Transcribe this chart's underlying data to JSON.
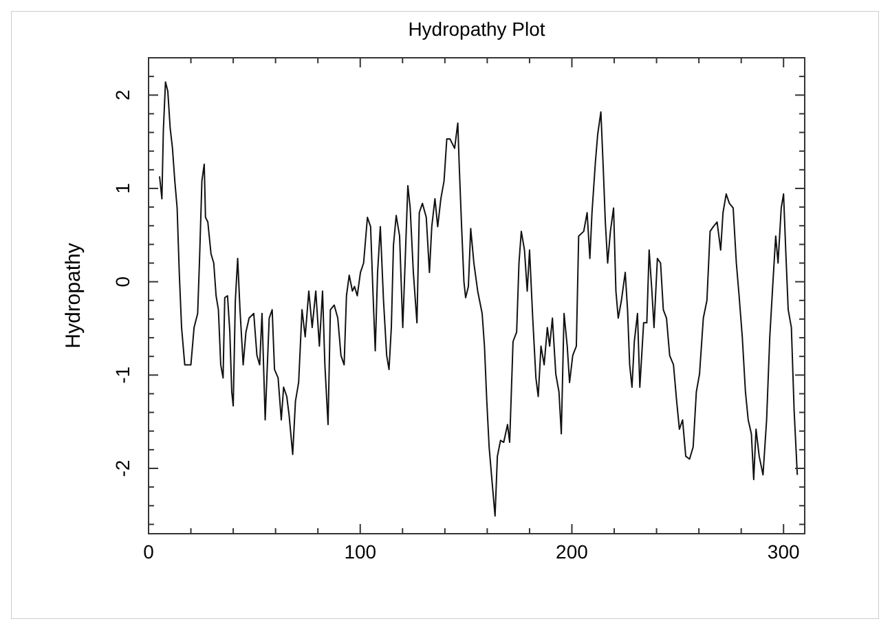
{
  "chart_data": {
    "type": "line",
    "title": "Hydropathy Plot",
    "ylabel": "Hydropathy",
    "xlim": [
      0,
      310
    ],
    "ylim": [
      -2.7,
      2.4
    ],
    "xticks": [
      0,
      {
        "value": 20,
        "label": null
      },
      {
        "value": 40,
        "label": null
      },
      {
        "value": 60,
        "label": null
      },
      {
        "value": 80,
        "label": null
      },
      100,
      {
        "value": 120,
        "label": null
      },
      {
        "value": 140,
        "label": null
      },
      {
        "value": 160,
        "label": null
      },
      {
        "value": 180,
        "label": null
      },
      200,
      {
        "value": 220,
        "label": null
      },
      {
        "value": 240,
        "label": null
      },
      {
        "value": 260,
        "label": null
      },
      {
        "value": 280,
        "label": null
      },
      300
    ],
    "yticks": [
      {
        "value": -2.6,
        "label": null
      },
      {
        "value": -2.4,
        "label": null
      },
      {
        "value": -2.2,
        "label": null
      },
      -2,
      {
        "value": -1.8,
        "label": null
      },
      {
        "value": -1.6,
        "label": null
      },
      {
        "value": -1.4,
        "label": null
      },
      {
        "value": -1.2,
        "label": null
      },
      -1,
      {
        "value": -0.8,
        "label": null
      },
      {
        "value": -0.6,
        "label": null
      },
      {
        "value": -0.4,
        "label": null
      },
      {
        "value": -0.2,
        "label": null
      },
      0,
      {
        "value": 0.2,
        "label": null
      },
      {
        "value": 0.4,
        "label": null
      },
      {
        "value": 0.6,
        "label": null
      },
      {
        "value": 0.8,
        "label": null
      },
      1,
      {
        "value": 1.2,
        "label": null
      },
      {
        "value": 1.4,
        "label": null
      },
      {
        "value": 1.6,
        "label": null
      },
      {
        "value": 1.8,
        "label": null
      },
      2,
      {
        "value": 2.2,
        "label": null
      }
    ],
    "grid": false,
    "marker": "none",
    "line_style": "solid",
    "series": [
      {
        "color": "#111111",
        "x": [
          5.2,
          6.3,
          7,
          8,
          9.1,
          10.2,
          11.3,
          12.4,
          13.5,
          14.5,
          15.6,
          17.1,
          20,
          21.5,
          23.2,
          24.1,
          25.2,
          26.3,
          26.9,
          28,
          29.5,
          30.8,
          31.9,
          33,
          34.1,
          35.2,
          36,
          37.3,
          38.4,
          39.3,
          40,
          41,
          42.1,
          43.2,
          44.7,
          46,
          47.5,
          49.7,
          51.2,
          52.5,
          53.6,
          55.1,
          57,
          58.4,
          59.5,
          61.2,
          62.7,
          63.8,
          65.3,
          66.4,
          68.1,
          69.4,
          70.9,
          72.5,
          74,
          75.7,
          77.3,
          79,
          80.7,
          82.2,
          83.3,
          84.8,
          85.9,
          87.7,
          89.4,
          90.9,
          92.4,
          93.5,
          94.8,
          96.3,
          97.3,
          98.6,
          100.1,
          101.6,
          103.4,
          104.9,
          106,
          107.1,
          108.2,
          109.5,
          111,
          112.5,
          113.6,
          114.7,
          115.7,
          117,
          118.6,
          120.1,
          121.2,
          122.5,
          123.6,
          125.1,
          126.8,
          127.9,
          129.4,
          131.2,
          132.7,
          133.8,
          135.3,
          136.6,
          138.1,
          139.6,
          140.9,
          142.4,
          144.6,
          146.1,
          146.8,
          147.9,
          149,
          149.8,
          151.1,
          152.2,
          153.7,
          155.5,
          157.6,
          158.7,
          159.8,
          160.9,
          162.4,
          163.7,
          164.8,
          166.3,
          167.8,
          169.6,
          170.6,
          172.2,
          173.9,
          175,
          176.1,
          177.6,
          178.9,
          180,
          181.5,
          183,
          184.1,
          185.4,
          186.9,
          188.4,
          189.5,
          190.8,
          192.4,
          193.9,
          195,
          196.3,
          197.8,
          198.9,
          200.4,
          202.1,
          203.2,
          205.6,
          207.2,
          208.5,
          209.5,
          211.1,
          212.2,
          213.7,
          214.8,
          215.8,
          216.9,
          218.2,
          219.7,
          220.8,
          221.9,
          223.4,
          225.2,
          226.3,
          227.3,
          228.4,
          229.5,
          231,
          232.1,
          233.9,
          235.4,
          236.5,
          237.8,
          238.8,
          240.4,
          241.9,
          243.2,
          244.7,
          246.2,
          248,
          249.5,
          250.8,
          252.3,
          253.8,
          255.6,
          257.3,
          258.8,
          260.3,
          262.1,
          263.8,
          265.3,
          266.8,
          268.6,
          270.3,
          271.4,
          272.9,
          274.4,
          276.2,
          277.7,
          279,
          280.5,
          282,
          283.3,
          284.8,
          285.9,
          287,
          288.5,
          290.3,
          292,
          293.5,
          295,
          296.3,
          297.4,
          298.9,
          300,
          301.1,
          302.2,
          303.7,
          305,
          306.5
        ],
        "values": [
          1.13,
          0.89,
          1.63,
          2.14,
          2.04,
          1.65,
          1.43,
          1.08,
          0.79,
          0.1,
          -0.49,
          -0.89,
          -0.89,
          -0.49,
          -0.34,
          0.25,
          1.08,
          1.26,
          0.69,
          0.64,
          0.3,
          0.2,
          -0.15,
          -0.3,
          -0.89,
          -1.03,
          -0.17,
          -0.15,
          -0.54,
          -1.18,
          -1.33,
          -0.2,
          0.25,
          -0.3,
          -0.89,
          -0.54,
          -0.39,
          -0.34,
          -0.79,
          -0.89,
          -0.34,
          -1.48,
          -0.39,
          -0.3,
          -0.94,
          -1.03,
          -1.48,
          -1.13,
          -1.23,
          -1.43,
          -1.85,
          -1.28,
          -1.08,
          -0.3,
          -0.59,
          -0.1,
          -0.49,
          -0.1,
          -0.69,
          -0.1,
          -0.89,
          -1.53,
          -0.3,
          -0.25,
          -0.39,
          -0.79,
          -0.89,
          -0.15,
          0.07,
          -0.1,
          -0.05,
          -0.15,
          0.1,
          0.2,
          0.69,
          0.59,
          -0.1,
          -0.74,
          0.1,
          0.59,
          -0.2,
          -0.79,
          -0.94,
          -0.49,
          0.39,
          0.71,
          0.49,
          -0.49,
          0.2,
          1.03,
          0.79,
          0.1,
          -0.44,
          0.74,
          0.84,
          0.69,
          0.1,
          0.59,
          0.89,
          0.59,
          0.89,
          1.08,
          1.53,
          1.53,
          1.43,
          1.7,
          1.23,
          0.59,
          0,
          -0.17,
          -0.05,
          0.57,
          0.2,
          -0.1,
          -0.34,
          -0.69,
          -1.28,
          -1.77,
          -2.17,
          -2.51,
          -1.87,
          -1.7,
          -1.72,
          -1.53,
          -1.72,
          -0.64,
          -0.54,
          0.2,
          0.54,
          0.34,
          -0.1,
          0.34,
          -0.39,
          -1.03,
          -1.23,
          -0.69,
          -0.89,
          -0.49,
          -0.69,
          -0.39,
          -0.99,
          -1.18,
          -1.63,
          -0.34,
          -0.69,
          -1.08,
          -0.79,
          -0.69,
          0.49,
          0.54,
          0.74,
          0.25,
          0.74,
          1.28,
          1.58,
          1.82,
          1.23,
          0.64,
          0.2,
          0.54,
          0.79,
          -0.1,
          -0.39,
          -0.2,
          0.1,
          -0.3,
          -0.89,
          -1.13,
          -0.64,
          -0.34,
          -1.13,
          -0.44,
          -0.44,
          0.34,
          -0.1,
          -0.49,
          0.25,
          0.2,
          -0.3,
          -0.39,
          -0.79,
          -0.89,
          -1.28,
          -1.58,
          -1.48,
          -1.87,
          -1.9,
          -1.77,
          -1.18,
          -0.99,
          -0.39,
          -0.2,
          0.54,
          0.59,
          0.64,
          0.34,
          0.74,
          0.94,
          0.84,
          0.79,
          0.2,
          -0.15,
          -0.59,
          -1.18,
          -1.48,
          -1.63,
          -2.12,
          -1.58,
          -1.87,
          -2.07,
          -1.48,
          -0.59,
          0,
          0.49,
          0.2,
          0.79,
          0.94,
          0.3,
          -0.3,
          -0.49,
          -1.38,
          -2.07
        ]
      }
    ]
  }
}
